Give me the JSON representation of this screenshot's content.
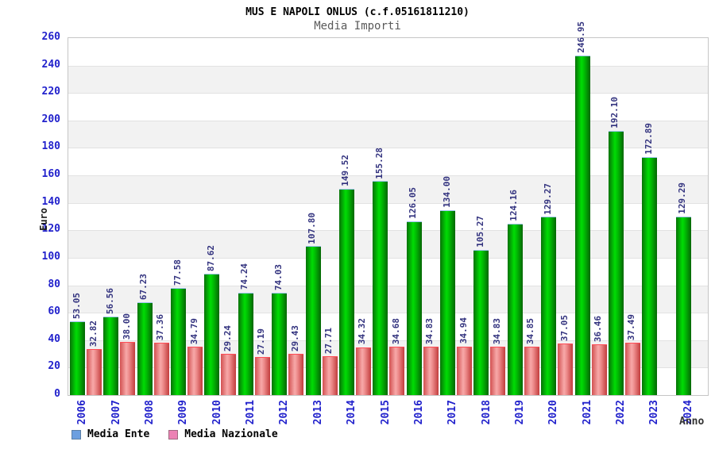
{
  "header": {
    "title": "MUS E NAPOLI ONLUS (c.f.05161811210)",
    "subtitle": "Media Importi"
  },
  "chart_data": {
    "type": "bar",
    "title": "MUS E NAPOLI ONLUS (c.f.05161811210)",
    "subtitle": "Media Importi",
    "xlabel": "Anno",
    "ylabel": "Euro",
    "ylim": [
      0,
      260
    ],
    "ytick_step": 20,
    "grid": "horizontal-bands",
    "legend_position": "bottom-left",
    "categories": [
      "2006",
      "2007",
      "2008",
      "2009",
      "2010",
      "2011",
      "2012",
      "2013",
      "2014",
      "2015",
      "2016",
      "2017",
      "2018",
      "2019",
      "2020",
      "2021",
      "2022",
      "2023",
      "2024"
    ],
    "series": [
      {
        "name": "Media Ente",
        "values": [
          53.05,
          56.56,
          67.23,
          77.58,
          87.62,
          74.24,
          74.03,
          107.8,
          149.52,
          155.28,
          126.05,
          134.0,
          105.27,
          124.16,
          129.27,
          246.95,
          192.1,
          172.89,
          129.29
        ]
      },
      {
        "name": "Media Nazionale",
        "values": [
          32.82,
          38.0,
          37.36,
          34.79,
          29.24,
          27.19,
          29.43,
          27.71,
          34.32,
          34.68,
          34.83,
          34.94,
          34.83,
          34.85,
          37.05,
          36.46,
          37.49,
          null,
          null
        ]
      }
    ]
  },
  "legend": {
    "items": [
      {
        "label": "Media Ente",
        "swatch_fill": "#6c9fe0",
        "swatch_border": "#5b7fa6"
      },
      {
        "label": "Media Nazionale",
        "swatch_fill": "#ec82b4",
        "swatch_border": "#a06a80"
      }
    ]
  },
  "colors": {
    "bar_ente_edge": "#056605",
    "bar_ente_center": "#00dc04",
    "bar_nazionale_edge": "#c23c3c",
    "bar_nazionale_center": "#f7a8a8",
    "tick_label": "#2222cc",
    "value_label": "#33337f",
    "band_gray": "#f2f2f2",
    "frame": "#c6c6c6"
  }
}
